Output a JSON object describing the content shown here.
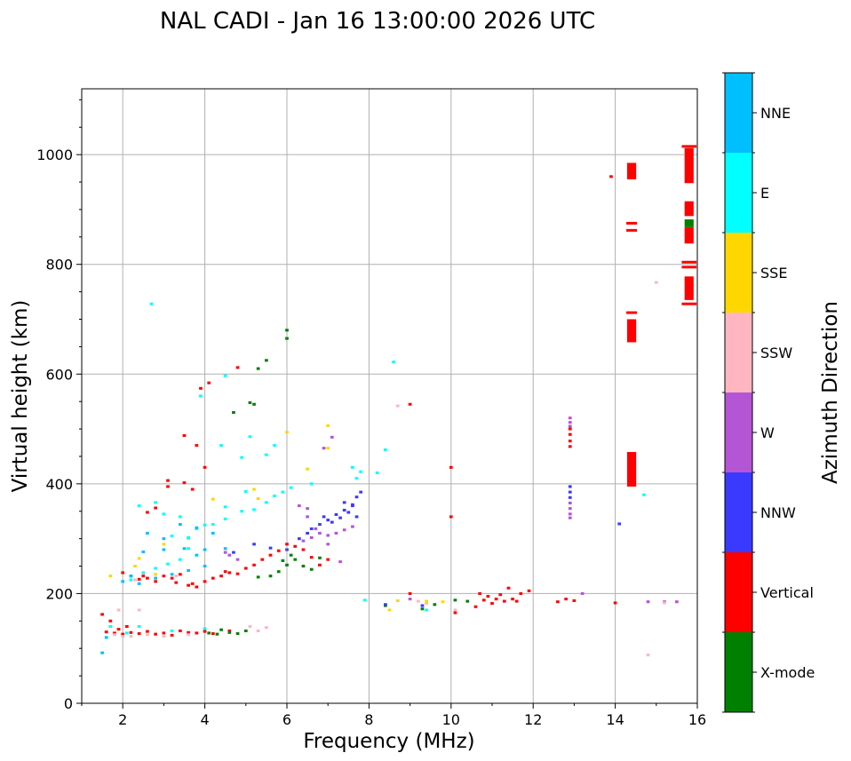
{
  "chart_data": {
    "type": "scatter",
    "title": "NAL CADI - Jan 16 13:00:00 2026 UTC",
    "xlabel": "Frequency (MHz)",
    "ylabel": "Virtual height (km)",
    "xlim": [
      1,
      16
    ],
    "ylim": [
      0,
      1120
    ],
    "x_ticks": [
      2,
      4,
      6,
      8,
      10,
      12,
      14,
      16
    ],
    "y_ticks": [
      0,
      200,
      400,
      600,
      800,
      1000
    ],
    "grid": true,
    "colorbar": {
      "title": "Azimuth Direction",
      "categories": [
        "X-mode",
        "Vertical",
        "NNW",
        "W",
        "SSW",
        "SSE",
        "E",
        "NNE"
      ],
      "colors": [
        "#008000",
        "#ff0000",
        "#3a3aff",
        "#b455d6",
        "#ffb6c1",
        "#ffd700",
        "#00ffff",
        "#00bfff"
      ]
    },
    "point_width_mhz": 0.08,
    "point_height_km": 5,
    "series": [
      {
        "name": "Vertical",
        "points": [
          [
            1.6,
            130
          ],
          [
            1.8,
            128
          ],
          [
            2.0,
            126
          ],
          [
            2.2,
            129
          ],
          [
            2.4,
            127
          ],
          [
            2.6,
            131
          ],
          [
            2.8,
            126
          ],
          [
            3.0,
            128
          ],
          [
            3.2,
            124
          ],
          [
            3.4,
            132
          ],
          [
            3.6,
            129
          ],
          [
            3.8,
            128
          ],
          [
            4.0,
            131
          ],
          [
            4.2,
            127
          ],
          [
            4.6,
            132
          ],
          [
            1.9,
            135
          ],
          [
            1.7,
            150
          ],
          [
            1.5,
            162
          ],
          [
            2.1,
            140
          ],
          [
            2.0,
            238
          ],
          [
            2.2,
            232
          ],
          [
            2.4,
            226
          ],
          [
            2.6,
            228
          ],
          [
            2.8,
            222
          ],
          [
            3.0,
            232
          ],
          [
            3.2,
            228
          ],
          [
            3.4,
            235
          ],
          [
            3.6,
            215
          ],
          [
            3.8,
            212
          ],
          [
            4.0,
            222
          ],
          [
            4.2,
            228
          ],
          [
            4.4,
            232
          ],
          [
            4.6,
            238
          ],
          [
            4.8,
            236
          ],
          [
            5.0,
            246
          ],
          [
            5.2,
            252
          ],
          [
            5.4,
            262
          ],
          [
            5.6,
            270
          ],
          [
            5.8,
            278
          ],
          [
            6.0,
            290
          ],
          [
            6.2,
            286
          ],
          [
            6.4,
            280
          ],
          [
            6.6,
            266
          ],
          [
            6.8,
            252
          ],
          [
            7.0,
            262
          ],
          [
            3.3,
            220
          ],
          [
            3.7,
            218
          ],
          [
            2.5,
            232
          ],
          [
            4.5,
            240
          ],
          [
            2.6,
            348
          ],
          [
            2.8,
            356
          ],
          [
            3.1,
            395
          ],
          [
            3.5,
            402
          ],
          [
            3.7,
            390
          ],
          [
            4.0,
            430
          ],
          [
            4.8,
            612
          ],
          [
            4.1,
            584
          ],
          [
            3.9,
            574
          ],
          [
            3.5,
            488
          ],
          [
            3.1,
            406
          ],
          [
            3.8,
            470
          ],
          [
            9.0,
            200
          ],
          [
            9.0,
            545
          ],
          [
            10.0,
            430
          ],
          [
            10.0,
            340
          ],
          [
            10.1,
            165
          ],
          [
            10.7,
            200
          ],
          [
            10.8,
            188
          ],
          [
            10.9,
            195
          ],
          [
            11.0,
            182
          ],
          [
            11.1,
            190
          ],
          [
            11.2,
            198
          ],
          [
            11.3,
            186
          ],
          [
            11.4,
            210
          ],
          [
            11.5,
            190
          ],
          [
            11.6,
            186
          ],
          [
            11.7,
            200
          ],
          [
            11.9,
            205
          ],
          [
            10.6,
            176
          ],
          [
            12.6,
            185
          ],
          [
            12.8,
            190
          ],
          [
            13.0,
            187
          ],
          [
            12.9,
            500
          ],
          [
            12.9,
            490
          ],
          [
            12.9,
            478
          ],
          [
            12.9,
            468
          ],
          [
            13.9,
            960
          ],
          [
            14.0,
            183
          ]
        ]
      },
      {
        "name": "X-mode",
        "points": [
          [
            4.1,
            128
          ],
          [
            4.3,
            126
          ],
          [
            4.6,
            129
          ],
          [
            4.8,
            127
          ],
          [
            5.0,
            132
          ],
          [
            4.4,
            134
          ],
          [
            5.6,
            232
          ],
          [
            5.8,
            240
          ],
          [
            6.0,
            252
          ],
          [
            6.2,
            262
          ],
          [
            6.4,
            250
          ],
          [
            6.6,
            244
          ],
          [
            6.8,
            265
          ],
          [
            5.3,
            230
          ],
          [
            5.9,
            260
          ],
          [
            6.1,
            270
          ],
          [
            4.7,
            530
          ],
          [
            5.1,
            548
          ],
          [
            5.3,
            610
          ],
          [
            5.5,
            625
          ],
          [
            6.0,
            680
          ],
          [
            6.0,
            665
          ],
          [
            5.2,
            545
          ],
          [
            8.4,
            178
          ],
          [
            9.3,
            172
          ],
          [
            9.6,
            180
          ],
          [
            10.1,
            188
          ],
          [
            10.4,
            186
          ]
        ]
      },
      {
        "name": "NNW",
        "points": [
          [
            6.6,
            318
          ],
          [
            6.8,
            326
          ],
          [
            7.0,
            334
          ],
          [
            7.2,
            344
          ],
          [
            7.4,
            352
          ],
          [
            7.6,
            362
          ],
          [
            7.7,
            376
          ],
          [
            7.8,
            385
          ],
          [
            6.5,
            310
          ],
          [
            6.3,
            300
          ],
          [
            7.3,
            338
          ],
          [
            7.5,
            348
          ],
          [
            7.6,
            360
          ],
          [
            6.9,
            340
          ],
          [
            7.1,
            330
          ],
          [
            7.4,
            366
          ],
          [
            7.7,
            340
          ],
          [
            5.2,
            290
          ],
          [
            5.6,
            283
          ],
          [
            6.0,
            280
          ],
          [
            4.7,
            275
          ],
          [
            8.4,
            180
          ],
          [
            9.3,
            178
          ],
          [
            12.9,
            395
          ],
          [
            12.9,
            385
          ],
          [
            12.9,
            375
          ],
          [
            14.1,
            327
          ]
        ]
      },
      {
        "name": "W",
        "points": [
          [
            6.4,
            296
          ],
          [
            6.6,
            302
          ],
          [
            6.8,
            310
          ],
          [
            7.0,
            306
          ],
          [
            7.2,
            310
          ],
          [
            7.4,
            316
          ],
          [
            7.6,
            322
          ],
          [
            7.0,
            290
          ],
          [
            6.7,
            318
          ],
          [
            4.5,
            275
          ],
          [
            4.8,
            262
          ],
          [
            4.6,
            270
          ],
          [
            7.3,
            258
          ],
          [
            6.5,
            340
          ],
          [
            6.5,
            355
          ],
          [
            6.9,
            465
          ],
          [
            7.1,
            485
          ],
          [
            6.3,
            360
          ],
          [
            12.9,
            520
          ],
          [
            12.9,
            512
          ],
          [
            12.9,
            505
          ],
          [
            12.9,
            365
          ],
          [
            12.9,
            355
          ],
          [
            12.9,
            345
          ],
          [
            12.9,
            338
          ],
          [
            13.2,
            200
          ],
          [
            14.8,
            185
          ],
          [
            15.2,
            185
          ],
          [
            15.5,
            185
          ],
          [
            9.0,
            190
          ]
        ]
      },
      {
        "name": "SSW",
        "points": [
          [
            1.8,
            125
          ],
          [
            2.0,
            122
          ],
          [
            2.2,
            122
          ],
          [
            2.6,
            125
          ],
          [
            3.0,
            122
          ],
          [
            3.6,
            125
          ],
          [
            5.3,
            132
          ],
          [
            5.5,
            138
          ],
          [
            5.1,
            140
          ],
          [
            1.9,
            170
          ],
          [
            2.4,
            170
          ],
          [
            3.3,
            232
          ],
          [
            2.3,
            225
          ],
          [
            8.7,
            542
          ],
          [
            9.2,
            186
          ],
          [
            9.4,
            182
          ],
          [
            10.1,
            170
          ],
          [
            15.0,
            767
          ],
          [
            14.8,
            88
          ],
          [
            15.2,
            183
          ]
        ]
      },
      {
        "name": "SSE",
        "points": [
          [
            2.3,
            250
          ],
          [
            2.4,
            264
          ],
          [
            2.8,
            235
          ],
          [
            3.0,
            290
          ],
          [
            3.6,
            300
          ],
          [
            4.2,
            372
          ],
          [
            5.2,
            390
          ],
          [
            5.3,
            373
          ],
          [
            6.0,
            494
          ],
          [
            6.5,
            427
          ],
          [
            7.0,
            506
          ],
          [
            7.0,
            465
          ],
          [
            8.5,
            170
          ],
          [
            8.7,
            187
          ],
          [
            9.4,
            186
          ],
          [
            9.8,
            185
          ],
          [
            1.7,
            232
          ]
        ]
      },
      {
        "name": "E",
        "points": [
          [
            1.7,
            140
          ],
          [
            2.1,
            128
          ],
          [
            2.4,
            140
          ],
          [
            3.2,
            132
          ],
          [
            4.0,
            136
          ],
          [
            2.2,
            225
          ],
          [
            2.5,
            238
          ],
          [
            2.8,
            246
          ],
          [
            3.1,
            254
          ],
          [
            3.4,
            262
          ],
          [
            3.6,
            282
          ],
          [
            3.2,
            305
          ],
          [
            3.6,
            302
          ],
          [
            3.8,
            318
          ],
          [
            4.0,
            325
          ],
          [
            4.2,
            326
          ],
          [
            4.5,
            336
          ],
          [
            4.9,
            350
          ],
          [
            5.2,
            353
          ],
          [
            5.5,
            366
          ],
          [
            5.7,
            378
          ],
          [
            5.9,
            385
          ],
          [
            6.1,
            393
          ],
          [
            6.6,
            400
          ],
          [
            4.5,
            358
          ],
          [
            5.0,
            386
          ],
          [
            3.0,
            345
          ],
          [
            2.4,
            360
          ],
          [
            2.8,
            366
          ],
          [
            3.4,
            340
          ],
          [
            7.7,
            410
          ],
          [
            7.8,
            422
          ],
          [
            7.6,
            430
          ],
          [
            4.4,
            470
          ],
          [
            4.9,
            448
          ],
          [
            5.5,
            453
          ],
          [
            5.1,
            486
          ],
          [
            5.7,
            470
          ],
          [
            3.9,
            560
          ],
          [
            4.5,
            597
          ],
          [
            8.4,
            462
          ],
          [
            8.6,
            622
          ],
          [
            8.2,
            420
          ],
          [
            7.9,
            188
          ],
          [
            9.4,
            170
          ],
          [
            14.7,
            380
          ],
          [
            2.7,
            728
          ]
        ]
      },
      {
        "name": "NNE",
        "points": [
          [
            2.0,
            222
          ],
          [
            2.4,
            218
          ],
          [
            2.8,
            228
          ],
          [
            3.2,
            235
          ],
          [
            3.6,
            242
          ],
          [
            4.0,
            250
          ],
          [
            2.5,
            276
          ],
          [
            3.0,
            280
          ],
          [
            3.5,
            282
          ],
          [
            4.0,
            280
          ],
          [
            4.5,
            282
          ],
          [
            2.6,
            310
          ],
          [
            3.0,
            300
          ],
          [
            3.4,
            326
          ],
          [
            3.8,
            320
          ],
          [
            4.2,
            310
          ],
          [
            2.2,
            232
          ],
          [
            3.8,
            270
          ],
          [
            1.6,
            120
          ],
          [
            1.5,
            92
          ]
        ]
      }
    ],
    "bars": [
      {
        "name": "Vertical",
        "x": 14.4,
        "y0": 955,
        "y1": 985
      },
      {
        "name": "Vertical",
        "x": 14.4,
        "y0": 658,
        "y1": 700
      },
      {
        "name": "Vertical",
        "x": 14.4,
        "y0": 395,
        "y1": 458
      },
      {
        "name": "Vertical",
        "x": 15.8,
        "y0": 948,
        "y1": 1012
      },
      {
        "name": "Vertical",
        "x": 15.8,
        "y0": 888,
        "y1": 915
      },
      {
        "name": "Vertical",
        "x": 15.8,
        "y0": 838,
        "y1": 868
      },
      {
        "name": "Vertical",
        "x": 15.8,
        "y0": 735,
        "y1": 778
      },
      {
        "name": "X-mode",
        "x": 15.8,
        "y0": 868,
        "y1": 882
      }
    ],
    "lines": [
      {
        "name": "Vertical",
        "x": 14.4,
        "y": 875
      },
      {
        "name": "Vertical",
        "x": 14.4,
        "y": 862
      },
      {
        "name": "Vertical",
        "x": 14.4,
        "y": 712
      },
      {
        "name": "Vertical",
        "x": 15.8,
        "y": 1015
      },
      {
        "name": "Vertical",
        "x": 15.8,
        "y": 804
      },
      {
        "name": "Vertical",
        "x": 15.8,
        "y": 795
      },
      {
        "name": "Vertical",
        "x": 15.8,
        "y": 728
      }
    ]
  }
}
